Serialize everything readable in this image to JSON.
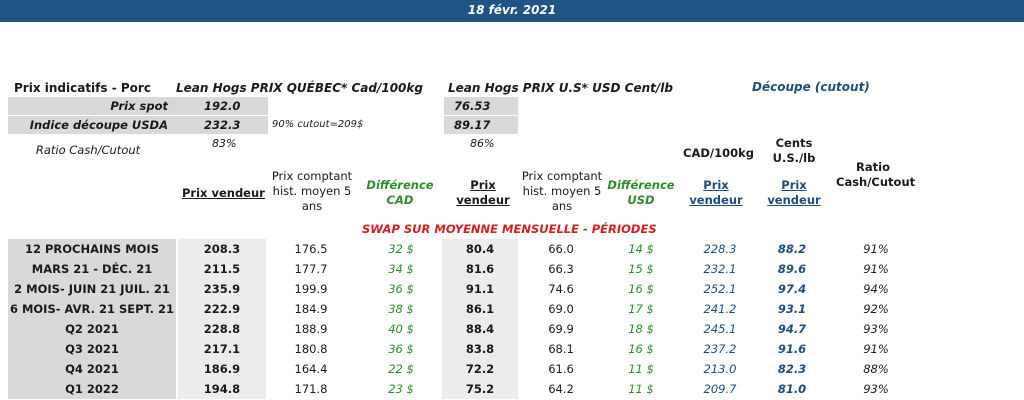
{
  "header": {
    "date": "18 févr. 2021"
  },
  "top": {
    "title_left": "Prix indicatifs - Porc",
    "title_quebec": "Lean Hogs PRIX QUÉBEC* Cad/100kg",
    "title_us": "Lean Hogs PRIX U.S* USD Cent/lb",
    "title_cutout": "Découpe (cutout)",
    "rows": [
      {
        "label": "Prix spot",
        "quebec": "192.0",
        "us": "76.53",
        "note": ""
      },
      {
        "label": "Indice découpe USDA",
        "quebec": "232.3",
        "us": "89.17",
        "note": "90% cutout=209$"
      },
      {
        "label": "Ratio Cash/Cutout",
        "quebec": "83%",
        "us": "86%",
        "note": ""
      }
    ]
  },
  "columns": {
    "prix_vendeur": "Prix vendeur",
    "prix_comptant": "Prix comptant hist. moyen 5 ans",
    "diff_cad": "Différence CAD",
    "prix_vendeur_us": "Prix vendeur",
    "prix_comptant_us": "Prix comptant hist. moyen 5 ans",
    "diff_usd": "Différence USD",
    "cad_100kg": "CAD/100kg",
    "cents_us_lb": "Cents U.S./lb",
    "prix_vendeur_cad_cut": "Prix vendeur",
    "prix_vendeur_cents_cut": "Prix vendeur",
    "ratio": "Ratio Cash/Cutout"
  },
  "swap_title": "SWAP SUR MOYENNE MENSUELLE - PÉRIODES",
  "rows": [
    {
      "label": "12 PROCHAINS MOIS",
      "pv": "208.3",
      "pc": "176.5",
      "dc": "32 $",
      "pvu": "80.4",
      "pcu": "66.0",
      "du": "14 $",
      "cad": "228.3",
      "cents": "88.2",
      "ratio": "91%"
    },
    {
      "label": "MARS 21 -  DÉC. 21",
      "pv": "211.5",
      "pc": "177.7",
      "dc": "34 $",
      "pvu": "81.6",
      "pcu": "66.3",
      "du": "15 $",
      "cad": "232.1",
      "cents": "89.6",
      "ratio": "91%"
    },
    {
      "label": "2 MOIS- JUIN 21 JUIL. 21",
      "pv": "235.9",
      "pc": "199.9",
      "dc": "36 $",
      "pvu": "91.1",
      "pcu": "74.6",
      "du": "16 $",
      "cad": "252.1",
      "cents": "97.4",
      "ratio": "94%"
    },
    {
      "label": "6 MOIS- AVR. 21 SEPT. 21",
      "pv": "222.9",
      "pc": "184.9",
      "dc": "38 $",
      "pvu": "86.1",
      "pcu": "69.0",
      "du": "17 $",
      "cad": "241.2",
      "cents": "93.1",
      "ratio": "92%"
    },
    {
      "label": "Q2 2021",
      "pv": "228.8",
      "pc": "188.9",
      "dc": "40 $",
      "pvu": "88.4",
      "pcu": "69.9",
      "du": "18 $",
      "cad": "245.1",
      "cents": "94.7",
      "ratio": "93%"
    },
    {
      "label": "Q3 2021",
      "pv": "217.1",
      "pc": "180.8",
      "dc": "36 $",
      "pvu": "83.8",
      "pcu": "68.1",
      "du": "16 $",
      "cad": "237.2",
      "cents": "91.6",
      "ratio": "91%"
    },
    {
      "label": "Q4 2021",
      "pv": "186.9",
      "pc": "164.4",
      "dc": "22 $",
      "pvu": "72.2",
      "pcu": "61.6",
      "du": "11 $",
      "cad": "213.0",
      "cents": "82.3",
      "ratio": "88%"
    },
    {
      "label": "Q1 2022",
      "pv": "194.8",
      "pc": "171.8",
      "dc": "23 $",
      "pvu": "75.2",
      "pcu": "64.2",
      "du": "11 $",
      "cad": "209.7",
      "cents": "81.0",
      "ratio": "93%"
    }
  ],
  "colors": {
    "banner": "#1f5585",
    "navy": "#1f4e79",
    "green": "#2e8b2e",
    "red": "#d42020",
    "grey": "#d9d9d9"
  }
}
